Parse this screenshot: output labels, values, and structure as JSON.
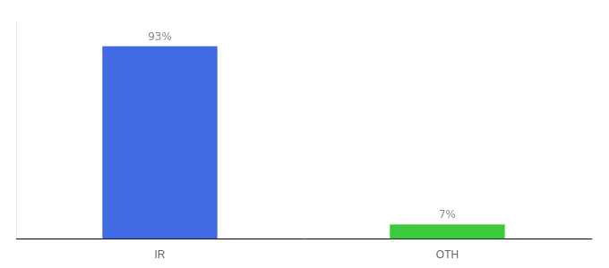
{
  "chart_data": {
    "type": "bar",
    "categories": [
      "IR",
      "OTH"
    ],
    "values": [
      93,
      7
    ],
    "colors": [
      "#4169e1",
      "#3dc93d"
    ],
    "data_labels": true,
    "value_labels": [
      "93%",
      "7%"
    ],
    "ylim": [
      0,
      105
    ],
    "tick_labels": "x",
    "grid": false
  }
}
